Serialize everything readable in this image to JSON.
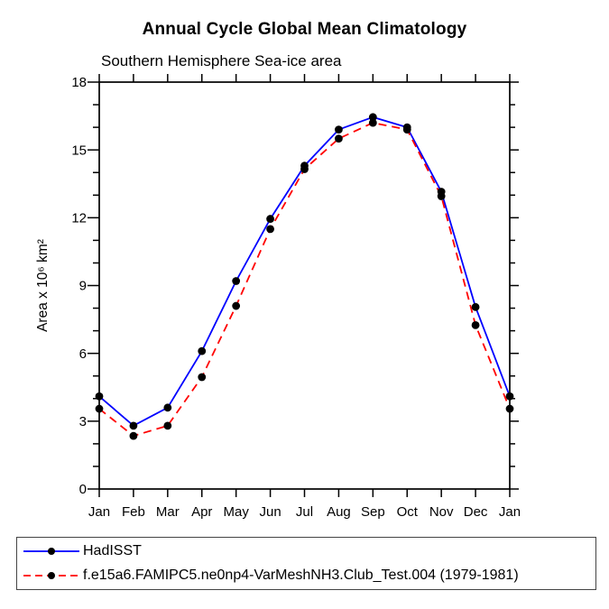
{
  "page": {
    "background": "#ffffff",
    "frame_color": "#000000",
    "marker_color": "#000000"
  },
  "chart_data": {
    "type": "line",
    "title": "Annual Cycle Global Mean Climatology",
    "subtitle": "Southern Hemisphere Sea-ice area",
    "ylabel": "Area x 10⁶ km²",
    "xlabel": "",
    "categories": [
      "Jan",
      "Feb",
      "Mar",
      "Apr",
      "May",
      "Jun",
      "Jul",
      "Aug",
      "Sep",
      "Oct",
      "Nov",
      "Dec",
      "Jan"
    ],
    "ylim": [
      0,
      18
    ],
    "y_major_step": 3,
    "y_minor_step": 1,
    "y_major_ticks": [
      0,
      3,
      6,
      9,
      12,
      15,
      18
    ],
    "grid": false,
    "legend_position": "bottom",
    "series": [
      {
        "name": "HadISST",
        "color": "#0000ff",
        "style": "solid",
        "marker": "circle",
        "values": [
          4.1,
          2.8,
          3.6,
          6.1,
          9.2,
          11.95,
          14.3,
          15.9,
          16.45,
          16.0,
          13.15,
          8.05,
          4.1
        ]
      },
      {
        "name": "f.e15a6.FAMIPC5.ne0np4-VarMeshNH3.Club_Test.004 (1979-1981)",
        "color": "#ff0000",
        "style": "dashed",
        "marker": "circle",
        "values": [
          3.55,
          2.35,
          2.8,
          4.95,
          8.1,
          11.5,
          14.15,
          15.5,
          16.2,
          15.9,
          12.95,
          7.25,
          3.55
        ]
      }
    ]
  }
}
